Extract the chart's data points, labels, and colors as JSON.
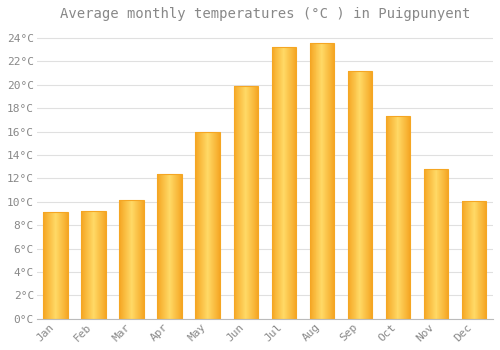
{
  "title": "Average monthly temperatures (°C ) in Puigpunyent",
  "months": [
    "Jan",
    "Feb",
    "Mar",
    "Apr",
    "May",
    "Jun",
    "Jul",
    "Aug",
    "Sep",
    "Oct",
    "Nov",
    "Dec"
  ],
  "values": [
    9.1,
    9.2,
    10.2,
    12.4,
    16.0,
    19.9,
    23.2,
    23.6,
    21.2,
    17.3,
    12.8,
    10.1
  ],
  "bar_color_center": "#FFD966",
  "bar_color_edge": "#F5A623",
  "background_color": "#FFFFFF",
  "grid_color": "#E0E0E0",
  "ylim": [
    0,
    25
  ],
  "yticks": [
    0,
    2,
    4,
    6,
    8,
    10,
    12,
    14,
    16,
    18,
    20,
    22,
    24
  ],
  "title_fontsize": 10,
  "tick_fontsize": 8,
  "font_family": "monospace",
  "text_color": "#888888"
}
